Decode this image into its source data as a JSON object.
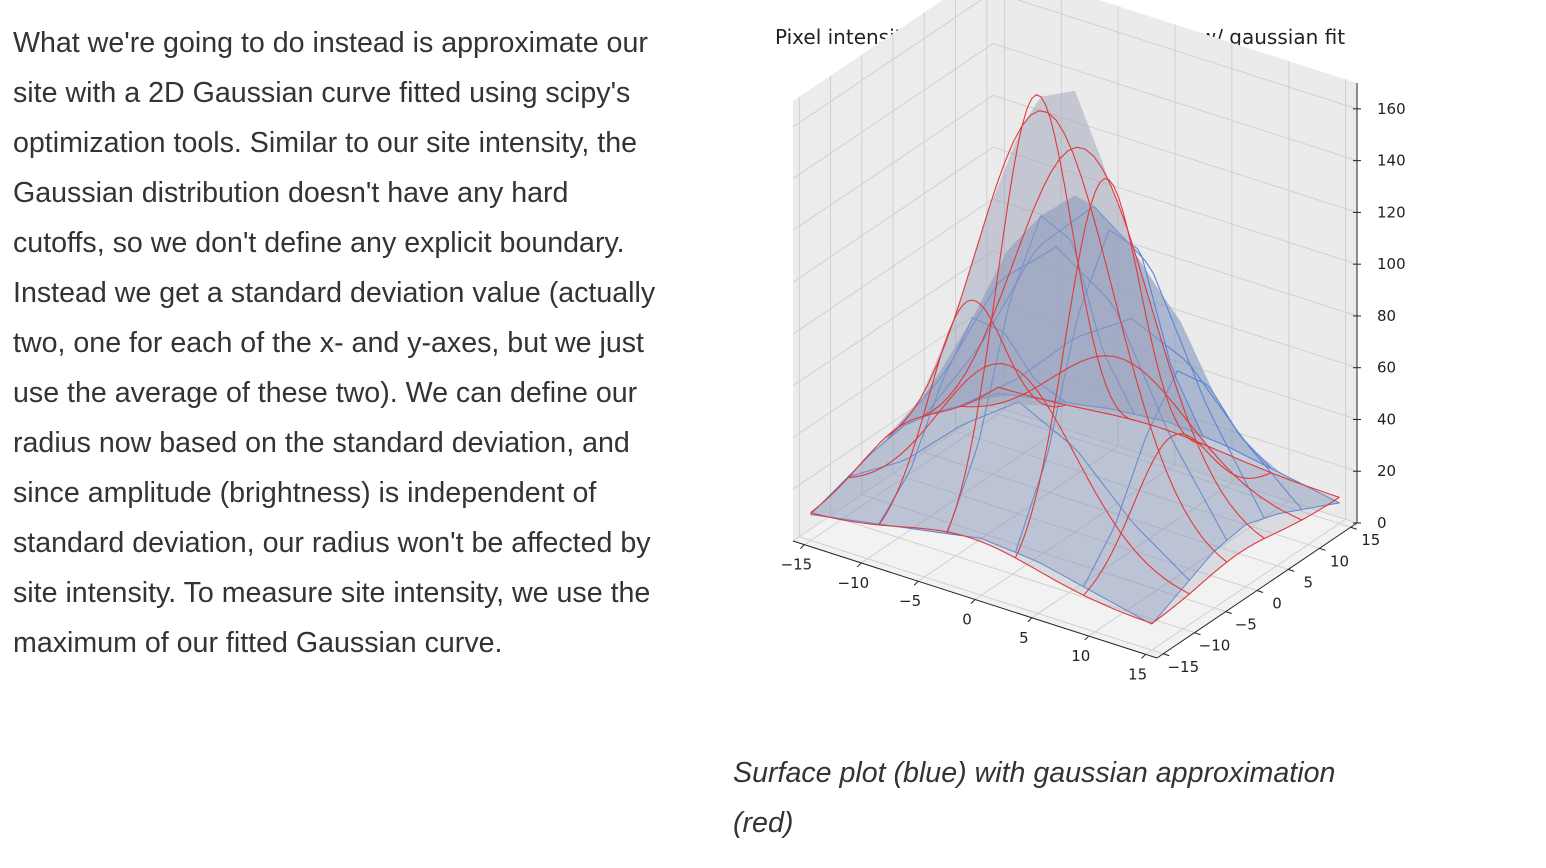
{
  "article": {
    "lines": [
      "What we're going to do instead is approximate our",
      "site with a 2D Gaussian curve fitted using scipy's",
      "optimization tools. Similar to our site intensity, the",
      "Gaussian distribution doesn't have any hard",
      "cutoffs, so we don't define any explicit boundary.",
      "Instead we get a standard deviation value (actually",
      "two, one for each of the x- and y-axes, but we just",
      "use the average of these two). We can define our",
      "radius now based on the standard deviation, and",
      "since amplitude (brightness) is independent of",
      "standard deviation, our radius won't be affected by",
      "site intensity. To measure site intensity, we use the",
      "maximum of our fitted Gaussian curve."
    ]
  },
  "caption": {
    "lines": [
      "Surface plot (blue) with gaussian approximation",
      "(red)"
    ]
  },
  "colors": {
    "surface_fill": "#7f93bd",
    "surface_edge": "#5b83d6",
    "fit_edge": "#e03a3a",
    "pane_fill": "#f2f2f2",
    "grid": "#d0d0d0"
  },
  "chart_data": {
    "type": "surface3d",
    "title": "Pixel intensity of a nucleation site @ 900s w/ gaussian fit",
    "xlabel": "",
    "ylabel": "",
    "zlabel": "",
    "xlim": [
      -16,
      16
    ],
    "ylim": [
      -16,
      16
    ],
    "zlim": [
      0,
      170
    ],
    "x_ticks": [
      "−15",
      "−10",
      "−5",
      "0",
      "5",
      "10",
      "15"
    ],
    "x_tick_values": [
      -15,
      -10,
      -5,
      0,
      5,
      10,
      15
    ],
    "y_ticks": [
      "−15",
      "−10",
      "−5",
      "0",
      "5",
      "10",
      "15"
    ],
    "y_tick_values": [
      -15,
      -10,
      -5,
      0,
      5,
      10,
      15
    ],
    "z_ticks": [
      "0",
      "20",
      "40",
      "60",
      "80",
      "100",
      "120",
      "140",
      "160"
    ],
    "z_tick_values": [
      0,
      20,
      40,
      60,
      80,
      100,
      120,
      140,
      160
    ],
    "grid": true,
    "series": [
      {
        "name": "Surface plot",
        "kind": "measured_surface",
        "color": "blue",
        "grid_x": [
          -15,
          -10,
          -5,
          0,
          5,
          10,
          15
        ],
        "grid_y": [
          -15,
          -10,
          -5,
          0,
          5,
          10,
          15
        ],
        "z": [
          [
            10,
            14,
            18,
            22,
            20,
            15,
            10
          ],
          [
            14,
            24,
            40,
            55,
            45,
            28,
            16
          ],
          [
            18,
            45,
            85,
            105,
            90,
            50,
            22
          ],
          [
            20,
            60,
            110,
            130,
            115,
            65,
            24
          ],
          [
            17,
            48,
            90,
            115,
            98,
            52,
            20
          ],
          [
            12,
            26,
            44,
            56,
            48,
            30,
            14
          ],
          [
            8,
            12,
            16,
            18,
            16,
            12,
            8
          ]
        ]
      },
      {
        "name": "gaussian approximation",
        "kind": "gaussian_fit",
        "color": "red",
        "amplitude": 165,
        "center": [
          -1,
          -1
        ],
        "sigma": [
          6,
          6
        ],
        "offset": 10
      }
    ]
  }
}
